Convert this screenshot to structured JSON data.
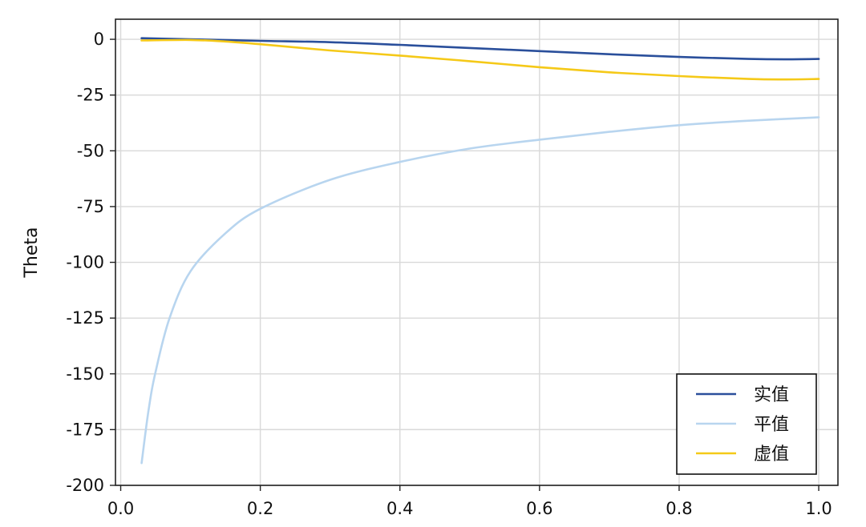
{
  "chart_data": {
    "type": "line",
    "title": "",
    "xlabel": "",
    "ylabel": "Theta",
    "xlim": [
      -0.0075,
      1.0275
    ],
    "ylim": [
      -200,
      9
    ],
    "xticks": [
      0.0,
      0.2,
      0.4,
      0.6,
      0.8,
      1.0
    ],
    "xtick_labels": [
      "0.0",
      "0.2",
      "0.4",
      "0.6",
      "0.8",
      "1.0"
    ],
    "yticks": [
      0,
      -25,
      -50,
      -75,
      -100,
      -125,
      -150,
      -175,
      -200
    ],
    "ytick_labels": [
      "0",
      "-25",
      "-50",
      "-75",
      "-100",
      "-125",
      "-150",
      "-175",
      "-200"
    ],
    "grid": true,
    "legend_position": "lower-right",
    "series": [
      {
        "name": "实值",
        "color": "#2a4f9b",
        "x": [
          0.03,
          0.1,
          0.2,
          0.3,
          0.4,
          0.5,
          0.6,
          0.7,
          0.8,
          0.9,
          0.95,
          1.0
        ],
        "y": [
          0.5,
          0.0,
          -0.7,
          -1.3,
          -2.5,
          -3.9,
          -5.3,
          -6.7,
          -7.9,
          -8.8,
          -9.0,
          -8.8
        ]
      },
      {
        "name": "平值",
        "color": "#b8d5ef",
        "x": [
          0.03,
          0.04,
          0.05,
          0.07,
          0.1,
          0.15,
          0.2,
          0.3,
          0.4,
          0.5,
          0.6,
          0.7,
          0.8,
          0.9,
          1.0
        ],
        "y": [
          -190,
          -166,
          -149,
          -125,
          -104,
          -87,
          -76,
          -63,
          -55,
          -49,
          -45,
          -41.5,
          -38.5,
          -36.5,
          -35
        ]
      },
      {
        "name": "虚值",
        "color": "#f5c918",
        "x": [
          0.03,
          0.1,
          0.15,
          0.2,
          0.3,
          0.4,
          0.5,
          0.6,
          0.7,
          0.8,
          0.9,
          0.95,
          1.0
        ],
        "y": [
          -0.5,
          -0.3,
          -1.0,
          -2.2,
          -5.0,
          -7.3,
          -9.8,
          -12.5,
          -14.8,
          -16.5,
          -17.8,
          -18.0,
          -17.8
        ]
      }
    ]
  }
}
